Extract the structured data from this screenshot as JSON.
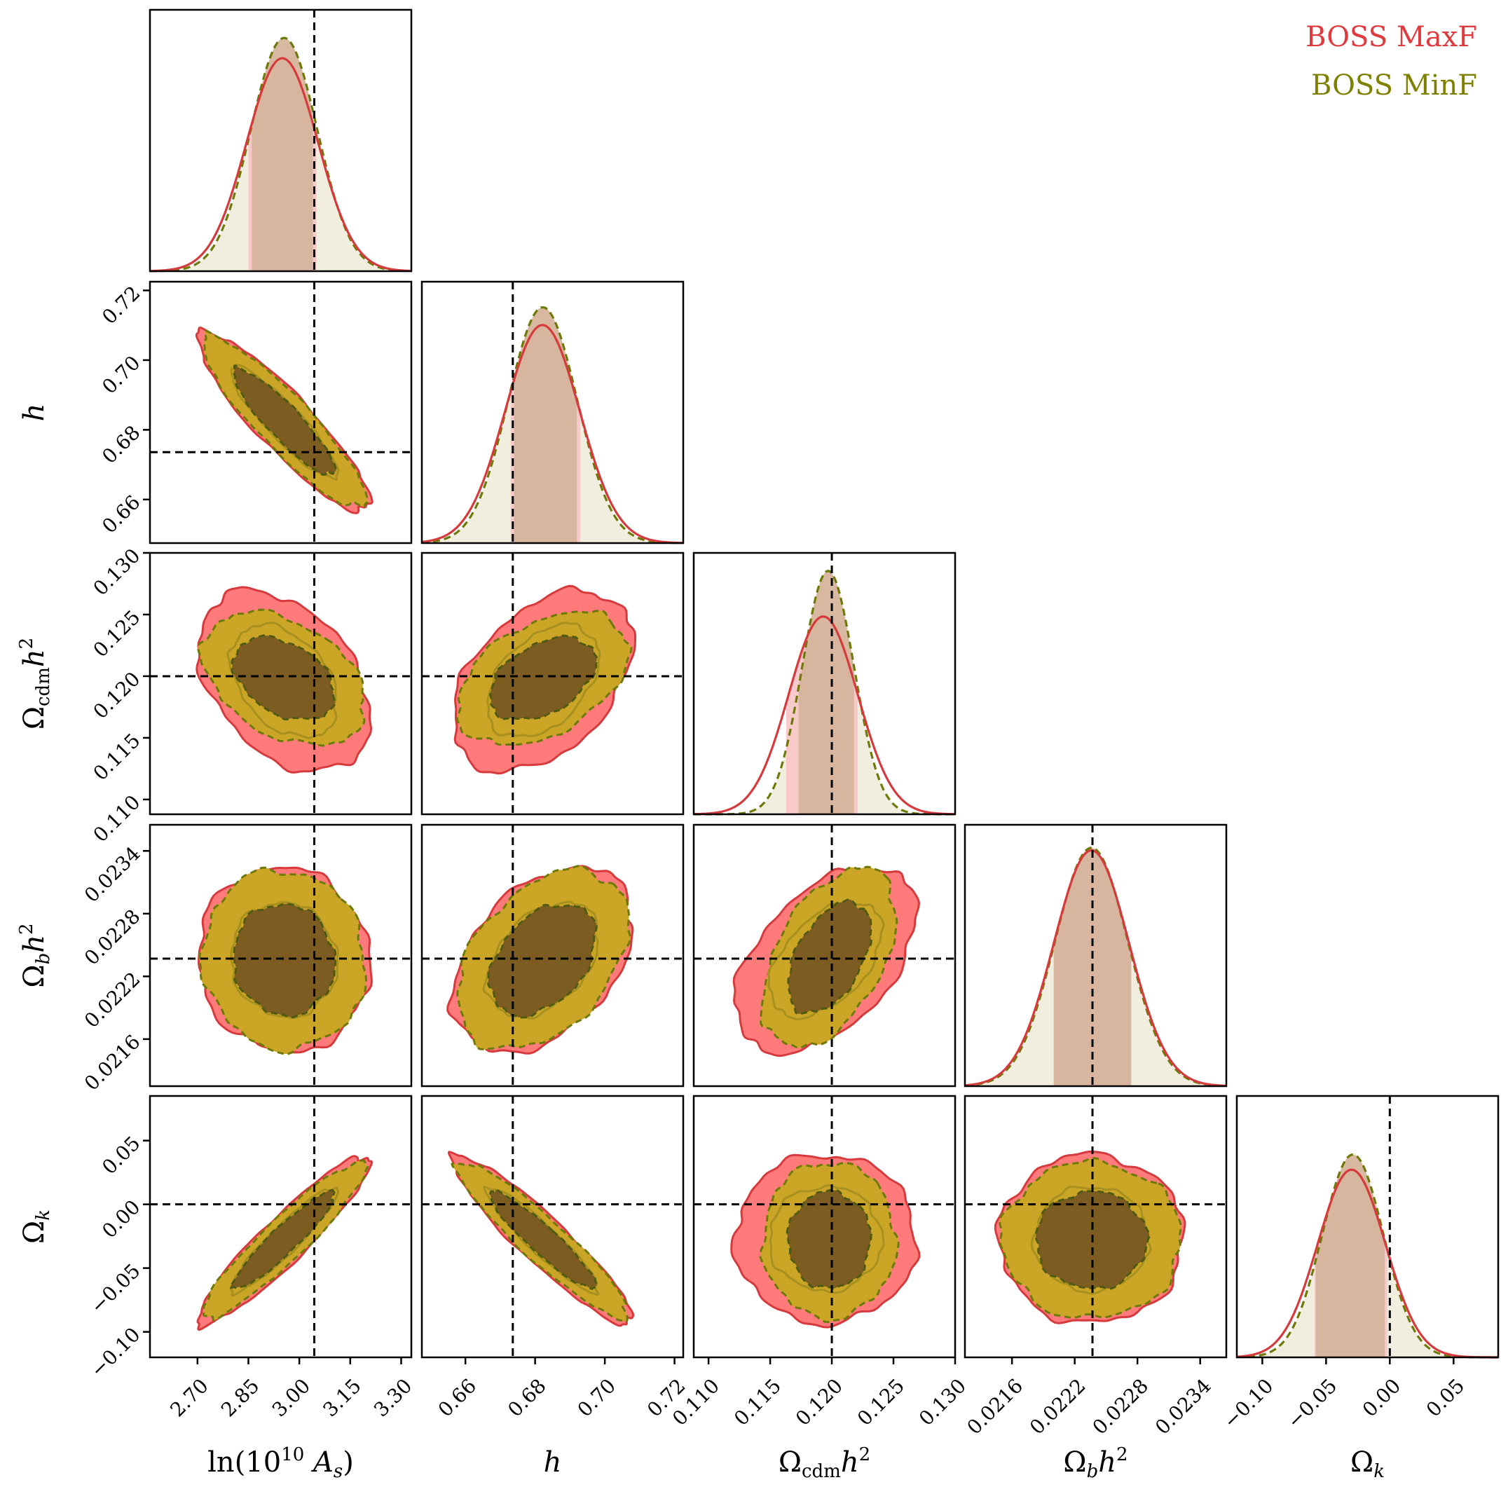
{
  "legend": {
    "placement": "top-right",
    "entries": [
      {
        "name": "BOSS MaxF",
        "color": "#e0393e"
      },
      {
        "name": "BOSS MinF",
        "color": "#808000"
      }
    ]
  },
  "colors": {
    "maxf_line": "#d63a3c",
    "maxf_fill": "#ff7b7b",
    "minf_line": "#6e7a08",
    "minf_fill_outer": "#cba525",
    "minf_fill_inner": "#7d5c22",
    "posterior_band": "#d6b49c",
    "truth_line": "#000000"
  },
  "chart_data": {
    "type": "corner",
    "parameters": [
      {
        "key": "lnAs",
        "label": "ln(10¹⁰ A_s)",
        "label_main": "ln(10",
        "label_sup": "10",
        "label_mid": " A",
        "label_sub": "s",
        "label_end": ")",
        "range": [
          2.56,
          3.33
        ],
        "ticks": [
          "2.70",
          "2.85",
          "3.00",
          "3.15",
          "3.30"
        ],
        "truth": 3.044
      },
      {
        "key": "h",
        "label": "h",
        "label_main": "h",
        "range": [
          0.6475,
          0.7225
        ],
        "ticks": [
          "0.66",
          "0.68",
          "0.70",
          "0.72"
        ],
        "truth": 0.6736
      },
      {
        "key": "ocdm",
        "label": "Ω_cdm h²",
        "label_main": "Ω",
        "label_sub": "cdm",
        "label_mid": "h",
        "label_sup": "2",
        "range": [
          0.1088,
          0.13
        ],
        "ticks": [
          "0.110",
          "0.115",
          "0.120",
          "0.125",
          "0.130"
        ],
        "truth": 0.12
      },
      {
        "key": "ob",
        "label": "Ω_b h²",
        "label_main": "Ω",
        "label_sub": "b",
        "label_mid": "h",
        "label_sup": "2",
        "range": [
          0.02115,
          0.02365
        ],
        "ticks": [
          "0.0216",
          "0.0222",
          "0.0228",
          "0.0234"
        ],
        "truth": 0.02237
      },
      {
        "key": "ok",
        "label": "Ω_k",
        "label_main": "Ω",
        "label_sub": "k",
        "range": [
          -0.12,
          0.085
        ],
        "ticks": [
          "−0.10",
          "−0.05",
          "0.00",
          "0.05"
        ],
        "truth": 0.0
      }
    ],
    "marginals": [
      {
        "param": "lnAs",
        "MaxF": {
          "mean": 2.95,
          "sigma": 0.105,
          "peak": 0.84,
          "band": [
            2.85,
            3.05
          ]
        },
        "MinF": {
          "mean": 2.955,
          "sigma": 0.098,
          "peak": 0.92,
          "band": [
            2.86,
            3.04
          ]
        }
      },
      {
        "param": "h",
        "MaxF": {
          "mean": 0.6821,
          "sigma": 0.0107,
          "peak": 0.86,
          "band": [
            0.673,
            0.693
          ]
        },
        "MinF": {
          "mean": 0.6822,
          "sigma": 0.0099,
          "peak": 0.93,
          "band": [
            0.674,
            0.692
          ]
        }
      },
      {
        "param": "ocdm",
        "MaxF": {
          "mean": 0.1193,
          "sigma": 0.0028,
          "peak": 0.78,
          "band": [
            0.1163,
            0.1221
          ]
        },
        "MinF": {
          "mean": 0.1197,
          "sigma": 0.0021,
          "peak": 0.96,
          "band": [
            0.1173,
            0.1218
          ]
        },
        "MinF_style": "dashed"
      },
      {
        "param": "ob",
        "MaxF": {
          "mean": 0.02236,
          "sigma": 0.00036,
          "peak": 0.93,
          "band": [
            0.022,
            0.02274
          ]
        },
        "MinF": {
          "mean": 0.02236,
          "sigma": 0.00035,
          "peak": 0.94,
          "band": [
            0.022,
            0.02274
          ]
        }
      },
      {
        "param": "ok",
        "MaxF": {
          "mean": -0.03,
          "sigma": 0.0265,
          "peak": 0.74,
          "band": [
            -0.059,
            -0.002
          ]
        },
        "MinF": {
          "mean": -0.029,
          "sigma": 0.024,
          "peak": 0.8,
          "band": [
            -0.058,
            -0.004
          ]
        }
      }
    ],
    "contours_2d": [
      {
        "x": "lnAs",
        "y": "h",
        "rho": -0.9,
        "MaxF": {
          "cx": 2.955,
          "cy": 0.6822,
          "sx": 0.103,
          "sy": 0.0105
        },
        "MinF": {
          "cx": 2.955,
          "cy": 0.6822,
          "sx": 0.098,
          "sy": 0.01
        }
      },
      {
        "x": "lnAs",
        "y": "ocdm",
        "rho": -0.38,
        "MaxF": {
          "cx": 2.955,
          "cy": 0.1196,
          "sx": 0.103,
          "sy": 0.003
        },
        "MinF": {
          "cx": 2.955,
          "cy": 0.1198,
          "sx": 0.098,
          "sy": 0.0022
        }
      },
      {
        "x": "h",
        "y": "ocdm",
        "rho": 0.42,
        "MaxF": {
          "cx": 0.6822,
          "cy": 0.1196,
          "sx": 0.0105,
          "sy": 0.003
        },
        "MinF": {
          "cx": 0.6822,
          "cy": 0.1198,
          "sx": 0.01,
          "sy": 0.0022
        }
      },
      {
        "x": "lnAs",
        "y": "ob",
        "rho": -0.05,
        "MaxF": {
          "cx": 2.955,
          "cy": 0.02236,
          "sx": 0.103,
          "sy": 0.00036
        },
        "MinF": {
          "cx": 2.955,
          "cy": 0.02236,
          "sx": 0.098,
          "sy": 0.00035
        }
      },
      {
        "x": "h",
        "y": "ob",
        "rho": 0.4,
        "MaxF": {
          "cx": 0.6822,
          "cy": 0.02236,
          "sx": 0.0105,
          "sy": 0.00036
        },
        "MinF": {
          "cx": 0.6822,
          "cy": 0.02236,
          "sx": 0.01,
          "sy": 0.00035
        }
      },
      {
        "x": "ocdm",
        "y": "ob",
        "rho": 0.48,
        "MaxF": {
          "cx": 0.1195,
          "cy": 0.02236,
          "sx": 0.003,
          "sy": 0.00036
        },
        "MinF": {
          "cx": 0.1198,
          "cy": 0.02238,
          "sx": 0.0022,
          "sy": 0.00035
        }
      },
      {
        "x": "lnAs",
        "y": "ok",
        "rho": 0.93,
        "MaxF": {
          "cx": 2.955,
          "cy": -0.028,
          "sx": 0.103,
          "sy": 0.027
        },
        "MinF": {
          "cx": 2.955,
          "cy": -0.028,
          "sx": 0.098,
          "sy": 0.025
        }
      },
      {
        "x": "h",
        "y": "ok",
        "rho": -0.93,
        "MaxF": {
          "cx": 0.6822,
          "cy": -0.028,
          "sx": 0.0105,
          "sy": 0.027
        },
        "MinF": {
          "cx": 0.6822,
          "cy": -0.028,
          "sx": 0.01,
          "sy": 0.025
        }
      },
      {
        "x": "ocdm",
        "y": "ok",
        "rho": 0.0,
        "MaxF": {
          "cx": 0.1195,
          "cy": -0.027,
          "sx": 0.003,
          "sy": 0.027
        },
        "MinF": {
          "cx": 0.1198,
          "cy": -0.028,
          "sx": 0.0022,
          "sy": 0.025
        }
      },
      {
        "x": "ob",
        "y": "ok",
        "rho": 0.0,
        "MaxF": {
          "cx": 0.02236,
          "cy": -0.027,
          "sx": 0.00036,
          "sy": 0.027
        },
        "MinF": {
          "cx": 0.02236,
          "cy": -0.028,
          "sx": 0.00035,
          "sy": 0.025
        }
      }
    ],
    "contour_levels": [
      "68%",
      "95%"
    ],
    "truth_style": "dashed",
    "grid": false
  }
}
